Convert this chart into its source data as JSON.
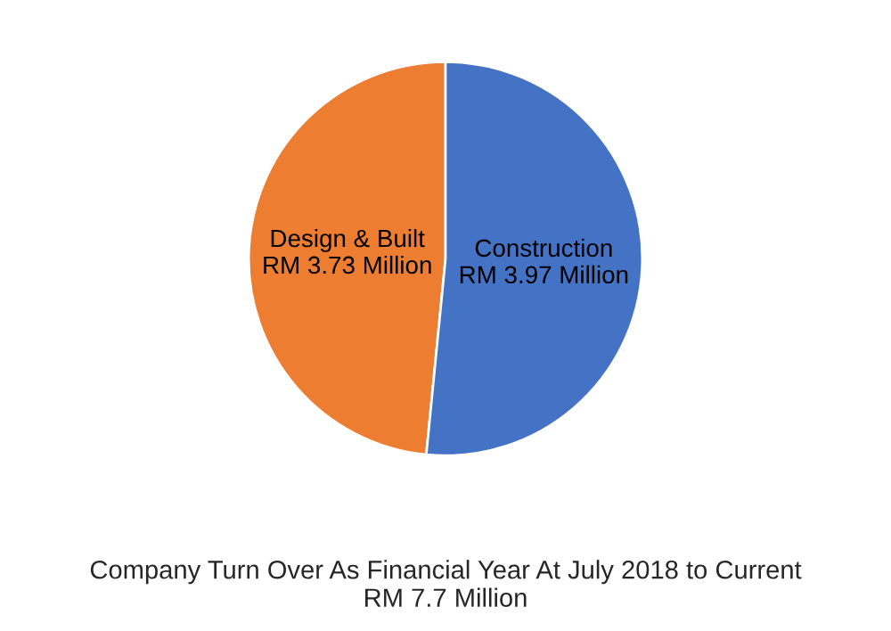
{
  "chart_data": {
    "type": "pie",
    "title": "Company Turn Over As Financial Year At July 2018 to Current\nRM 7.7 Million",
    "categories": [
      "Design & Built",
      "Construction"
    ],
    "values": [
      3.73,
      3.97
    ],
    "value_labels": [
      "RM 3.73 Million",
      "RM 3.97 Million"
    ],
    "colors": [
      "#ed7d31",
      "#4472c4"
    ]
  }
}
